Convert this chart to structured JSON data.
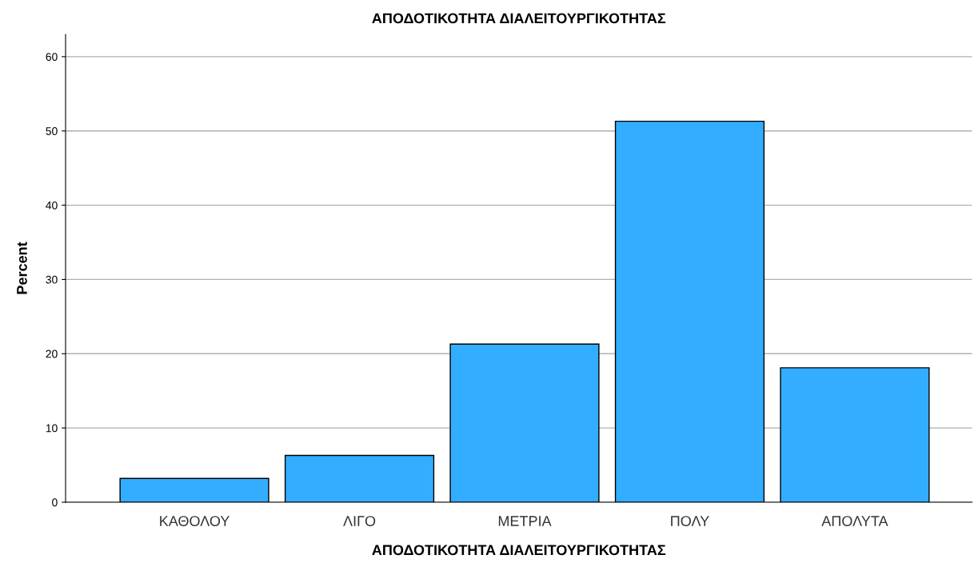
{
  "chart_data": {
    "type": "bar",
    "title": "ΑΠΟΔΟΤΙΚΟΤΗΤΑ ΔΙΑΛΕΙΤΟΥΡΓΙΚΟΤΗΤΑΣ",
    "xlabel": "ΑΠΟΔΟΤΙΚΟΤΗΤΑ ΔΙΑΛΕΙΤΟΥΡΓΙΚΟΤΗΤΑΣ",
    "ylabel": "Percent",
    "categories": [
      "ΚΑΘΟΛΟΥ",
      "ΛΙΓΟ",
      "ΜΕΤΡΙΑ",
      "ΠΟΛΥ",
      "ΑΠΟΛΥΤΑ"
    ],
    "values": [
      3.2,
      6.3,
      21.3,
      51.3,
      18.1
    ],
    "color": "#33adff",
    "ylim": [
      0,
      63
    ],
    "yticks": [
      0,
      10,
      20,
      30,
      40,
      50,
      60
    ],
    "grid": "y"
  }
}
